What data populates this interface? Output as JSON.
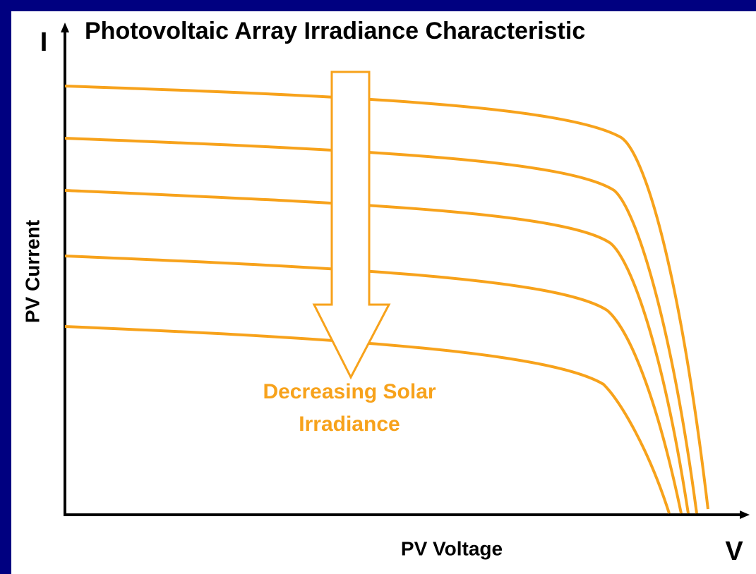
{
  "title": "Photovoltaic Array Irradiance Characteristic",
  "axes": {
    "y_symbol": "I",
    "x_symbol": "V",
    "y_label": "PV Current",
    "x_label": "PV Voltage"
  },
  "annotation": {
    "lines": [
      "Decreasing Solar",
      "Irradiance"
    ]
  }
}
